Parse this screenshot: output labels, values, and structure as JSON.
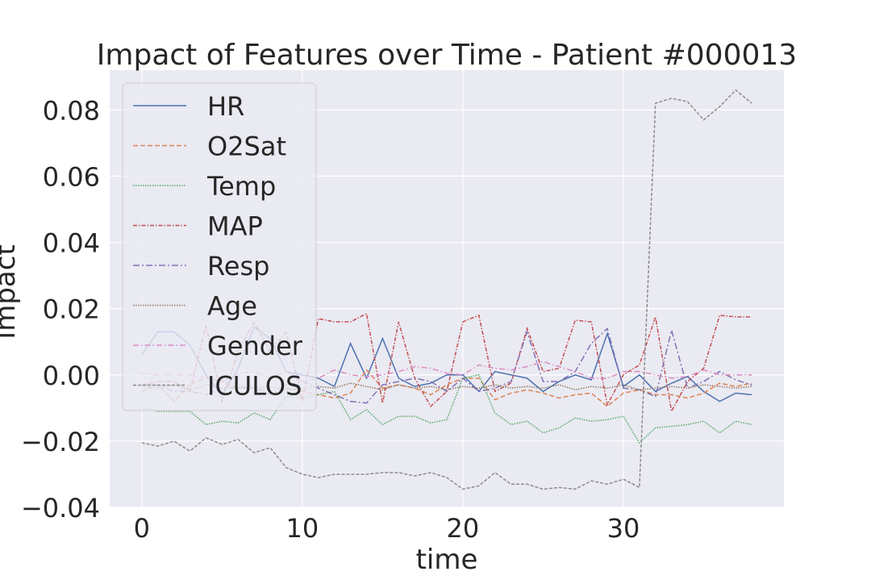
{
  "chart_data": {
    "type": "line",
    "title": "Impact of Features over Time - Patient #000013",
    "xlabel": "time",
    "ylabel": "Impact",
    "xlim": [
      -2,
      40
    ],
    "ylim": [
      -0.04,
      0.092
    ],
    "xticks": [
      0,
      10,
      20,
      30
    ],
    "xtick_labels": [
      "0",
      "10",
      "20",
      "30"
    ],
    "yticks": [
      -0.04,
      -0.02,
      0.0,
      0.02,
      0.04,
      0.06,
      0.08
    ],
    "ytick_labels": [
      "−0.04",
      "−0.02",
      "0.00",
      "0.02",
      "0.04",
      "0.06",
      "0.08"
    ],
    "grid": true,
    "legend_position": "upper-left",
    "x": [
      0,
      1,
      2,
      3,
      4,
      5,
      6,
      7,
      8,
      9,
      10,
      11,
      12,
      13,
      14,
      15,
      16,
      17,
      18,
      19,
      20,
      21,
      22,
      23,
      24,
      25,
      26,
      27,
      28,
      29,
      30,
      31,
      32,
      33,
      34,
      35,
      36,
      37,
      38
    ],
    "series": [
      {
        "name": "HR",
        "color": "#4c72b0",
        "dash": "",
        "values": [
          0.006,
          0.013,
          0.013,
          0.009,
          0.0,
          -0.006,
          0.002,
          0.0145,
          0.011,
          0.001,
          0.0,
          -0.001,
          -0.0035,
          0.0095,
          -0.001,
          0.011,
          -0.001,
          -0.0035,
          -0.0025,
          0.0,
          0.0,
          -0.005,
          0.001,
          0.0,
          -0.001,
          -0.005,
          -0.002,
          0.0,
          -0.0015,
          0.0125,
          -0.0035,
          0.0,
          -0.005,
          -0.0025,
          -0.0005,
          -0.005,
          -0.008,
          -0.0055,
          -0.006
        ]
      },
      {
        "name": "O2Sat",
        "color": "#dd8452",
        "dash": "6,3",
        "values": [
          -0.005,
          -0.003,
          -0.008,
          -0.003,
          -0.001,
          -0.002,
          -0.004,
          -0.003,
          -0.006,
          -0.004,
          -0.005,
          -0.006,
          -0.007,
          -0.0055,
          0.0015,
          -0.004,
          -0.003,
          -0.004,
          -0.006,
          -0.003,
          -0.001,
          -0.001,
          -0.0075,
          -0.0055,
          -0.0045,
          -0.0055,
          -0.007,
          -0.006,
          -0.0055,
          -0.0095,
          -0.0055,
          -0.0045,
          -0.006,
          -0.006,
          -0.007,
          -0.0055,
          -0.0025,
          -0.0035,
          -0.0025
        ]
      },
      {
        "name": "Temp",
        "color": "#55a868",
        "dash": "1.5,1.5",
        "values": [
          -0.01,
          -0.011,
          -0.011,
          -0.011,
          -0.015,
          -0.014,
          -0.0145,
          -0.0115,
          -0.0135,
          -0.0065,
          -0.007,
          -0.006,
          -0.005,
          -0.0135,
          -0.0105,
          -0.015,
          -0.0125,
          -0.0125,
          -0.0145,
          -0.0135,
          -0.001,
          0.0,
          -0.0115,
          -0.015,
          -0.014,
          -0.0175,
          -0.016,
          -0.013,
          -0.014,
          -0.0135,
          -0.0125,
          -0.0205,
          -0.016,
          -0.0155,
          -0.015,
          -0.014,
          -0.0175,
          -0.014,
          -0.015
        ]
      },
      {
        "name": "MAP",
        "color": "#c44e52",
        "dash": "5,2,1.5,2",
        "values": [
          -0.003,
          -0.002,
          -0.002,
          -0.005,
          0.015,
          -0.008,
          0.007,
          0.016,
          0.007,
          0.013,
          -0.008,
          0.017,
          0.016,
          0.016,
          0.0185,
          -0.0085,
          0.016,
          -0.001,
          -0.0095,
          -0.005,
          0.016,
          0.018,
          -0.005,
          -0.0025,
          0.014,
          0.001,
          0.002,
          0.0165,
          0.016,
          -0.009,
          0.0,
          0.003,
          0.0175,
          -0.011,
          -0.002,
          0.002,
          0.018,
          0.0175,
          0.0175
        ]
      },
      {
        "name": "Resp",
        "color": "#8172b3",
        "dash": "8,3,2,3",
        "values": [
          -0.003,
          -0.003,
          -0.005,
          -0.005,
          -0.006,
          -0.004,
          -0.004,
          -0.004,
          -0.006,
          -0.003,
          -0.002,
          -0.004,
          -0.006,
          -0.008,
          -0.0085,
          -0.003,
          -0.002,
          -0.001,
          -0.002,
          -0.005,
          -0.001,
          -0.005,
          -0.004,
          -0.002,
          0.013,
          -0.002,
          -0.002,
          0.001,
          0.0095,
          0.014,
          -0.004,
          -0.0045,
          -0.0065,
          0.0135,
          -0.004,
          -0.002,
          0.001,
          -0.0015,
          -0.003
        ]
      },
      {
        "name": "Age",
        "color": "#937860",
        "dash": "1.5,1.5",
        "values": [
          -0.0035,
          -0.004,
          -0.003,
          -0.0045,
          -0.003,
          -0.004,
          -0.0035,
          -0.004,
          -0.0035,
          -0.0045,
          -0.004,
          -0.0035,
          -0.004,
          -0.0025,
          -0.0035,
          -0.0045,
          -0.003,
          -0.004,
          -0.0035,
          -0.0045,
          -0.0035,
          -0.004,
          -0.003,
          -0.004,
          -0.0035,
          -0.004,
          -0.003,
          -0.0045,
          -0.0035,
          -0.004,
          -0.003,
          -0.0045,
          -0.004,
          -0.0035,
          -0.004,
          -0.003,
          -0.0035,
          -0.004,
          -0.0035
        ]
      },
      {
        "name": "Gender",
        "color": "#da8bc3",
        "dash": "7,3,1.5,3",
        "values": [
          0.0005,
          0.0,
          0.0,
          0.0,
          -0.001,
          -0.002,
          0.0005,
          0.001,
          -0.001,
          0.001,
          -0.002,
          -0.001,
          0.0015,
          0.0,
          -0.0005,
          0.0,
          0.001,
          0.0025,
          0.002,
          0.0005,
          0.0,
          0.003,
          0.002,
          0.0015,
          0.0025,
          0.004,
          0.0025,
          0.001,
          -0.001,
          -0.001,
          0.001,
          0.001,
          0.0,
          -0.001,
          -0.0005,
          0.0015,
          0.0,
          0.0,
          0.0
        ]
      },
      {
        "name": "ICULOS",
        "color": "#8c8c8c",
        "dash": "4,2",
        "values": [
          -0.0205,
          -0.0215,
          -0.02,
          -0.023,
          -0.019,
          -0.021,
          -0.0195,
          -0.0235,
          -0.022,
          -0.028,
          -0.03,
          -0.031,
          -0.03,
          -0.03,
          -0.03,
          -0.0295,
          -0.0295,
          -0.0305,
          -0.0295,
          -0.031,
          -0.0345,
          -0.0335,
          -0.0295,
          -0.033,
          -0.033,
          -0.0345,
          -0.034,
          -0.0345,
          -0.032,
          -0.033,
          -0.0315,
          -0.034,
          0.082,
          0.0835,
          0.0825,
          0.077,
          0.081,
          0.086,
          0.082
        ]
      }
    ]
  }
}
